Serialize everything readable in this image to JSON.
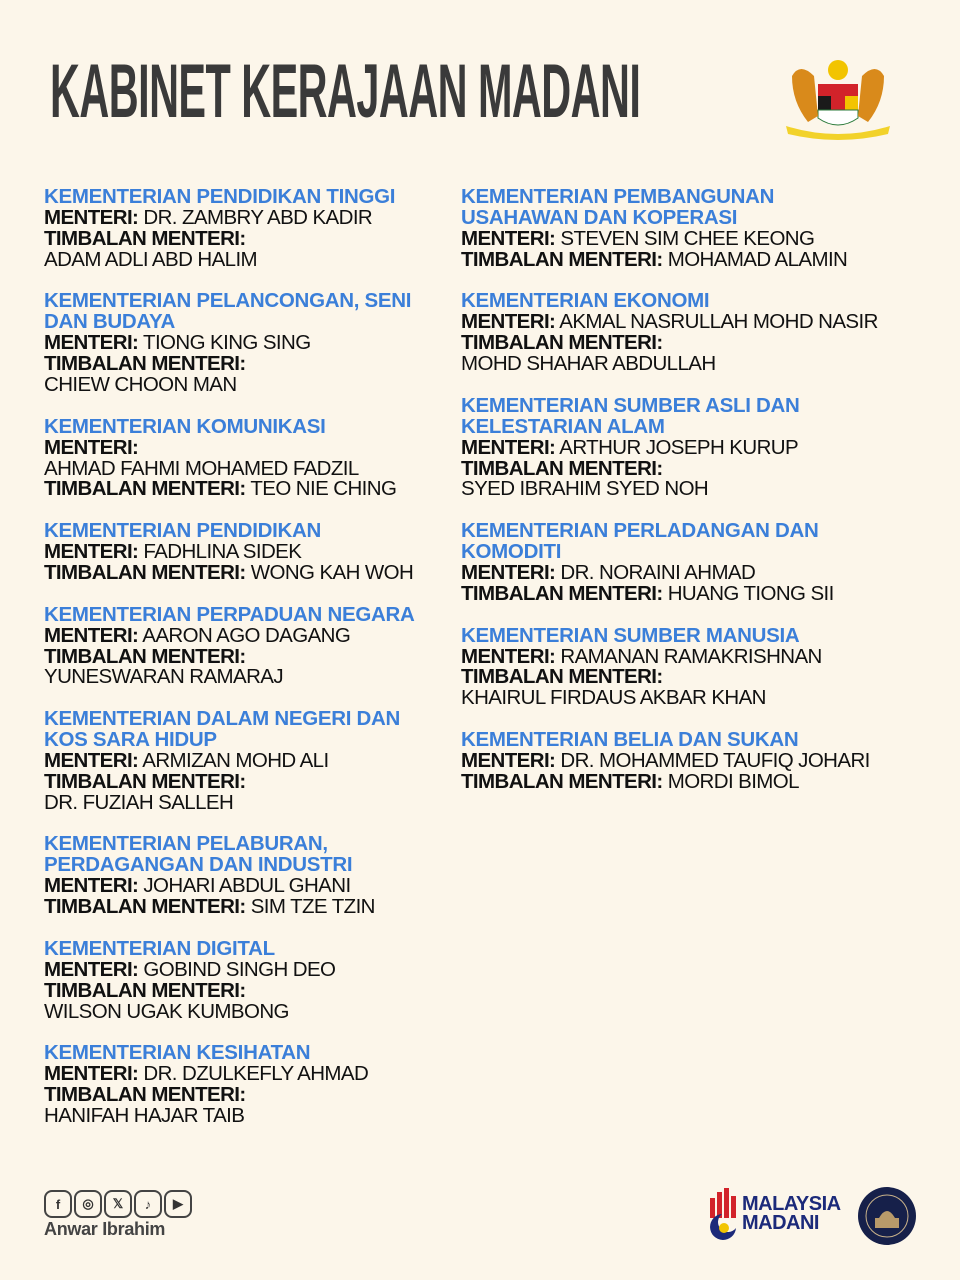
{
  "header": {
    "title": "KABINET KERAJAAN MADANI",
    "emblem_icon": "malaysia-coat-of-arms"
  },
  "labels": {
    "minister": "MENTERI:",
    "deputy": "TIMBALAN MENTERI:"
  },
  "colors": {
    "heading": "#3b7fd9",
    "background": "#fcf6ea",
    "text": "#111111"
  },
  "left_column": [
    {
      "heading": [
        "KEMENTERIAN PENDIDIKAN TINGGI"
      ],
      "lines": [
        {
          "label": "MENTERI:",
          "value": "DR. ZAMBRY ABD KADIR"
        },
        {
          "label": "TIMBALAN MENTERI:",
          "value": ""
        },
        {
          "label": "",
          "value": "ADAM ADLI ABD HALIM"
        }
      ]
    },
    {
      "heading": [
        "KEMENTERIAN PELANCONGAN, SENI",
        "DAN BUDAYA"
      ],
      "lines": [
        {
          "label": "MENTERI:",
          "value": "TIONG KING SING"
        },
        {
          "label": "TIMBALAN MENTERI:",
          "value": ""
        },
        {
          "label": "",
          "value": "CHIEW CHOON MAN"
        }
      ]
    },
    {
      "heading": [
        "KEMENTERIAN KOMUNIKASI"
      ],
      "lines": [
        {
          "label": "MENTERI:",
          "value": ""
        },
        {
          "label": "",
          "value": "AHMAD FAHMI MOHAMED FADZIL"
        },
        {
          "label": "TIMBALAN MENTERI:",
          "value": "TEO NIE CHING"
        }
      ]
    },
    {
      "heading": [
        "KEMENTERIAN PENDIDIKAN"
      ],
      "lines": [
        {
          "label": "MENTERI:",
          "value": "FADHLINA SIDEK"
        },
        {
          "label": "TIMBALAN MENTERI:",
          "value": "WONG KAH WOH"
        }
      ]
    },
    {
      "heading": [
        "KEMENTERIAN PERPADUAN NEGARA"
      ],
      "lines": [
        {
          "label": "MENTERI:",
          "value": "AARON AGO DAGANG"
        },
        {
          "label": "TIMBALAN MENTERI:",
          "value": ""
        },
        {
          "label": "",
          "value": "YUNESWARAN RAMARAJ"
        }
      ]
    },
    {
      "heading": [
        "KEMENTERIAN DALAM NEGERI DAN",
        "KOS SARA HIDUP"
      ],
      "lines": [
        {
          "label": "MENTERI:",
          "value": "ARMIZAN MOHD ALI"
        },
        {
          "label": "TIMBALAN MENTERI:",
          "value": ""
        },
        {
          "label": "",
          "value": "DR. FUZIAH SALLEH"
        }
      ]
    },
    {
      "heading": [
        "KEMENTERIAN PELABURAN,",
        "PERDAGANGAN DAN INDUSTRI"
      ],
      "lines": [
        {
          "label": "MENTERI:",
          "value": "JOHARI ABDUL GHANI"
        },
        {
          "label": "TIMBALAN MENTERI:",
          "value": "SIM TZE TZIN"
        }
      ]
    },
    {
      "heading": [
        "KEMENTERIAN DIGITAL"
      ],
      "lines": [
        {
          "label": "MENTERI:",
          "value": "GOBIND SINGH DEO"
        },
        {
          "label": "TIMBALAN MENTERI:",
          "value": ""
        },
        {
          "label": "",
          "value": "WILSON UGAK KUMBONG"
        }
      ]
    },
    {
      "heading": [
        "KEMENTERIAN KESIHATAN"
      ],
      "lines": [
        {
          "label": "MENTERI:",
          "value": "DR. DZULKEFLY AHMAD"
        },
        {
          "label": "TIMBALAN MENTERI:",
          "value": ""
        },
        {
          "label": "",
          "value": "HANIFAH HAJAR TAIB"
        }
      ]
    }
  ],
  "right_column": [
    {
      "heading": [
        "KEMENTERIAN PEMBANGUNAN",
        "USAHAWAN DAN KOPERASI"
      ],
      "lines": [
        {
          "label": "MENTERI:",
          "value": "STEVEN SIM CHEE KEONG"
        },
        {
          "label": "TIMBALAN MENTERI:",
          "value": "MOHAMAD ALAMIN"
        }
      ]
    },
    {
      "heading": [
        "KEMENTERIAN EKONOMI"
      ],
      "lines": [
        {
          "label": "MENTERI:",
          "value": "AKMAL NASRULLAH MOHD NASIR"
        },
        {
          "label": "TIMBALAN MENTERI:",
          "value": ""
        },
        {
          "label": "",
          "value": "MOHD SHAHAR ABDULLAH"
        }
      ]
    },
    {
      "heading": [
        "KEMENTERIAN SUMBER ASLI DAN",
        "KELESTARIAN ALAM"
      ],
      "lines": [
        {
          "label": "MENTERI:",
          "value": "ARTHUR JOSEPH KURUP"
        },
        {
          "label": "TIMBALAN MENTERI:",
          "value": ""
        },
        {
          "label": "",
          "value": "SYED IBRAHIM SYED NOH"
        }
      ]
    },
    {
      "heading": [
        "KEMENTERIAN PERLADANGAN DAN",
        "KOMODITI"
      ],
      "lines": [
        {
          "label": "MENTERI:",
          "value": "DR. NORAINI AHMAD"
        },
        {
          "label": "TIMBALAN MENTERI:",
          "value": "HUANG TIONG SII"
        }
      ]
    },
    {
      "heading": [
        "KEMENTERIAN SUMBER MANUSIA"
      ],
      "lines": [
        {
          "label": "MENTERI:",
          "value": "RAMANAN RAMAKRISHNAN"
        },
        {
          "label": "TIMBALAN MENTERI:",
          "value": ""
        },
        {
          "label": "",
          "value": "KHAIRUL FIRDAUS AKBAR KHAN"
        }
      ]
    },
    {
      "heading": [
        "KEMENTERIAN BELIA DAN SUKAN"
      ],
      "lines": [
        {
          "label": "MENTERI:",
          "value": "DR. MOHAMMED TAUFIQ JOHARI"
        },
        {
          "label": "TIMBALAN MENTERI:",
          "value": "MORDI BIMOL"
        }
      ]
    }
  ],
  "footer": {
    "social_icons": [
      {
        "name": "facebook",
        "glyph": "f"
      },
      {
        "name": "instagram",
        "glyph": "◎"
      },
      {
        "name": "x",
        "glyph": "𝕏"
      },
      {
        "name": "tiktok",
        "glyph": "♪"
      },
      {
        "name": "youtube",
        "glyph": "▶"
      }
    ],
    "author": "Anwar Ibrahim",
    "madani_logo": [
      "MALAYSIA",
      "MADANI"
    ],
    "seal_icon": "jabatan-perdana-menteri-seal"
  }
}
